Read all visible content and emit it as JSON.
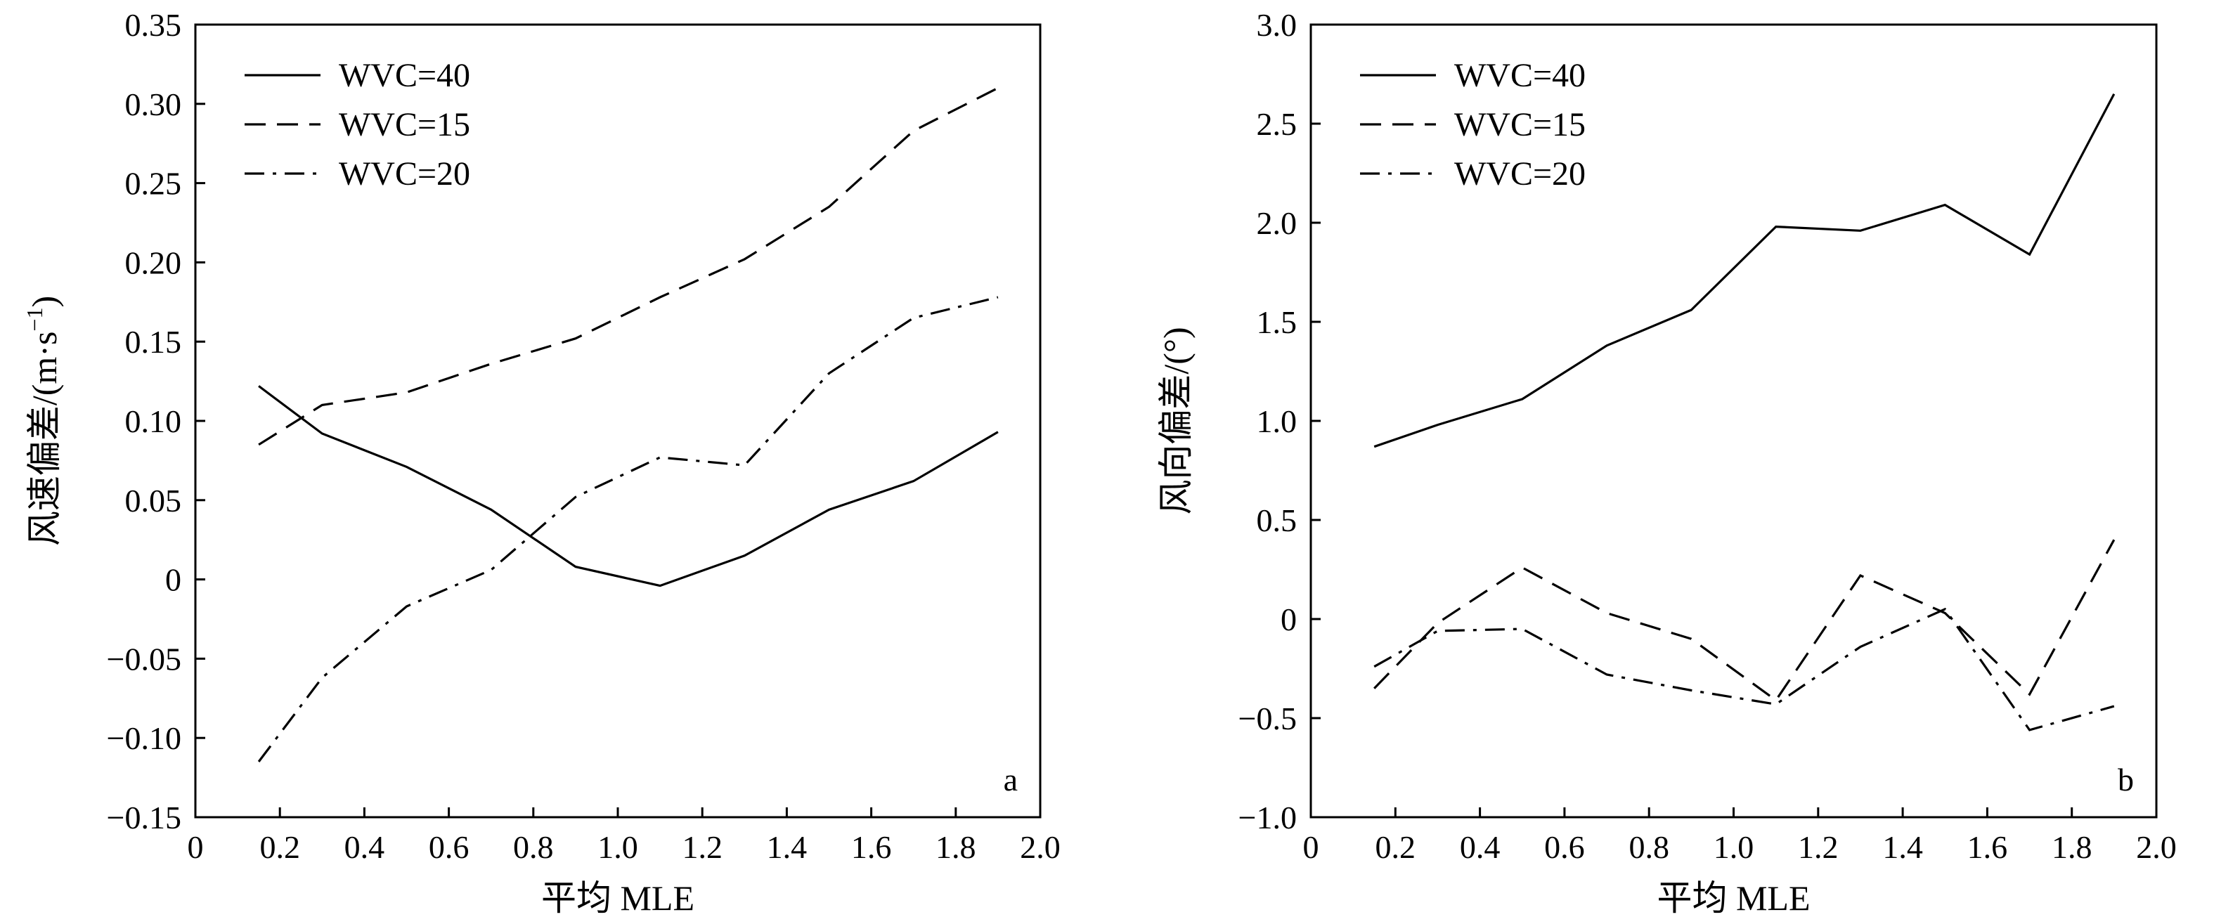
{
  "chart_data": [
    {
      "type": "line",
      "panel_label": "a",
      "xlabel": "平均 MLE",
      "ylabel": "风速偏差/(m·s",
      "ylabel_sup": "−1",
      "ylabel_end": ")",
      "xlim": [
        0,
        2.0
      ],
      "ylim": [
        -0.15,
        0.35
      ],
      "xticks": [
        0,
        0.2,
        0.4,
        0.6,
        0.8,
        1.0,
        1.2,
        1.4,
        1.6,
        1.8,
        2.0
      ],
      "xtick_labels": [
        "0",
        "0.2",
        "0.4",
        "0.6",
        "0.8",
        "1.0",
        "1.2",
        "1.4",
        "1.6",
        "1.8",
        "2.0"
      ],
      "yticks": [
        -0.15,
        -0.1,
        -0.05,
        0,
        0.05,
        0.1,
        0.15,
        0.2,
        0.25,
        0.3,
        0.35
      ],
      "ytick_labels": [
        "−0.15",
        "−0.10",
        "−0.05",
        "0",
        "0.05",
        "0.10",
        "0.15",
        "0.20",
        "0.25",
        "0.30",
        "0.35"
      ],
      "grid": false,
      "legend_position": "top-left",
      "x": [
        0.15,
        0.3,
        0.5,
        0.7,
        0.9,
        1.1,
        1.3,
        1.5,
        1.7,
        1.9
      ],
      "series": [
        {
          "name": "WVC=40",
          "style": "solid",
          "values": [
            0.122,
            0.092,
            0.071,
            0.044,
            0.008,
            -0.004,
            0.015,
            0.044,
            0.062,
            0.093
          ]
        },
        {
          "name": "WVC=15",
          "style": "dashed",
          "values": [
            0.085,
            0.11,
            0.118,
            0.136,
            0.152,
            0.178,
            0.202,
            0.235,
            0.283,
            0.31
          ]
        },
        {
          "name": "WVC=20",
          "style": "dashdot",
          "values": [
            -0.115,
            -0.062,
            -0.017,
            0.006,
            0.052,
            0.077,
            0.072,
            0.13,
            0.165,
            0.178
          ]
        }
      ]
    },
    {
      "type": "line",
      "panel_label": "b",
      "xlabel": "平均 MLE",
      "ylabel": "风向偏差/(°)",
      "ylabel_sup": "",
      "ylabel_end": "",
      "xlim": [
        0,
        2.0
      ],
      "ylim": [
        -1.0,
        3.0
      ],
      "xticks": [
        0,
        0.2,
        0.4,
        0.6,
        0.8,
        1.0,
        1.2,
        1.4,
        1.6,
        1.8,
        2.0
      ],
      "xtick_labels": [
        "0",
        "0.2",
        "0.4",
        "0.6",
        "0.8",
        "1.0",
        "1.2",
        "1.4",
        "1.6",
        "1.8",
        "2.0"
      ],
      "yticks": [
        -1.0,
        -0.5,
        0,
        0.5,
        1.0,
        1.5,
        2.0,
        2.5,
        3.0
      ],
      "ytick_labels": [
        "−1.0",
        "−0.5",
        "0",
        "0.5",
        "1.0",
        "1.5",
        "2.0",
        "2.5",
        "3.0"
      ],
      "grid": false,
      "legend_position": "top-left",
      "x": [
        0.15,
        0.3,
        0.5,
        0.7,
        0.9,
        1.1,
        1.3,
        1.5,
        1.7,
        1.9
      ],
      "series": [
        {
          "name": "WVC=40",
          "style": "solid",
          "values": [
            0.87,
            0.98,
            1.11,
            1.38,
            1.56,
            1.98,
            1.96,
            2.09,
            1.84,
            2.65
          ]
        },
        {
          "name": "WVC=15",
          "style": "dashed",
          "values": [
            -0.35,
            -0.02,
            0.26,
            0.03,
            -0.1,
            -0.41,
            0.22,
            0.03,
            -0.38,
            0.4
          ]
        },
        {
          "name": "WVC=20",
          "style": "dashdot",
          "values": [
            -0.24,
            -0.06,
            -0.05,
            -0.28,
            -0.36,
            -0.43,
            -0.14,
            0.05,
            -0.56,
            -0.44
          ]
        }
      ]
    }
  ]
}
